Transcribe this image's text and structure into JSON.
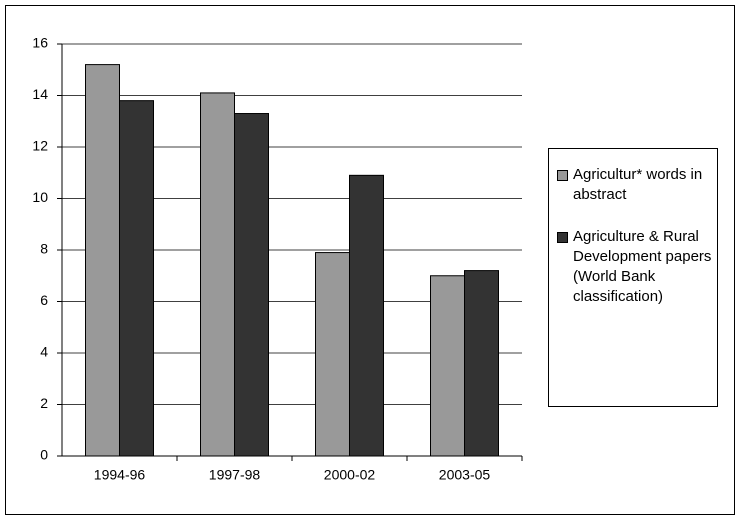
{
  "chart_data": {
    "type": "bar",
    "categories": [
      "1994-96",
      "1997-98",
      "2000-02",
      "2003-05"
    ],
    "series": [
      {
        "name": "Agricultur* words in abstract",
        "color": "#999999",
        "values": [
          15.2,
          14.1,
          7.9,
          7.0
        ]
      },
      {
        "name": "Agriculture & Rural Development papers (World Bank classification)",
        "color": "#333333",
        "values": [
          13.8,
          13.3,
          10.9,
          7.2
        ]
      }
    ],
    "ylim": [
      0,
      16
    ],
    "yticks": [
      0,
      2,
      4,
      6,
      8,
      10,
      12,
      14,
      16
    ],
    "grid": true,
    "legend": "right"
  }
}
